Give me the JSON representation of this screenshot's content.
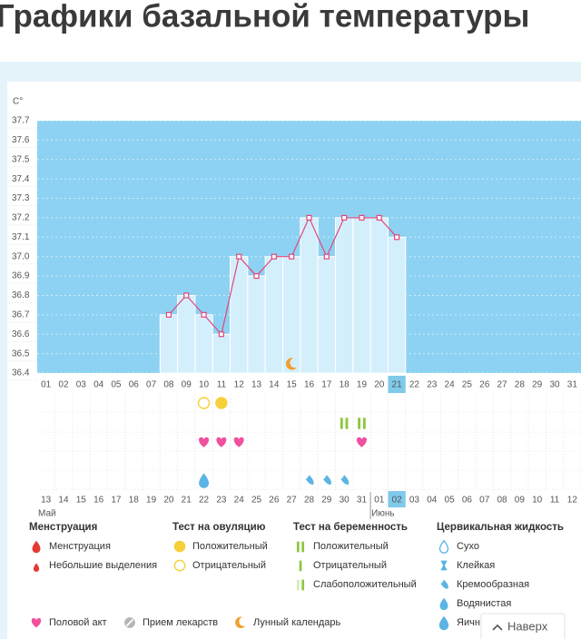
{
  "chart_data": {
    "type": "line",
    "title": "Графики базальной температуры",
    "y_label": "C°",
    "categories": [
      "01",
      "02",
      "03",
      "04",
      "05",
      "06",
      "07",
      "08",
      "09",
      "10",
      "11",
      "12",
      "13",
      "14",
      "15",
      "16",
      "17",
      "18",
      "19",
      "20",
      "21",
      "22",
      "23",
      "24",
      "25",
      "26",
      "27",
      "28",
      "29",
      "30",
      "31"
    ],
    "values": [
      null,
      null,
      null,
      null,
      null,
      null,
      null,
      36.7,
      36.8,
      36.7,
      36.6,
      37.0,
      36.9,
      37.0,
      37.0,
      37.2,
      37.0,
      37.2,
      37.2,
      37.2,
      37.1,
      null,
      null,
      null,
      null,
      null,
      null,
      null,
      null,
      null,
      null
    ],
    "dates": [
      "13",
      "14",
      "15",
      "16",
      "17",
      "18",
      "19",
      "20",
      "21",
      "22",
      "23",
      "24",
      "25",
      "26",
      "27",
      "28",
      "29",
      "30",
      "31",
      "01",
      "02",
      "03",
      "04",
      "05",
      "06",
      "07",
      "08",
      "09",
      "10",
      "11",
      "12"
    ],
    "red_dates": [
      "16",
      "17",
      "23",
      "24",
      "30",
      "31",
      "06",
      "07"
    ],
    "highlight_day": "21",
    "highlight_date": "02",
    "months": [
      {
        "label": "Май",
        "at": "13"
      },
      {
        "label": "Июнь",
        "at": "01"
      }
    ],
    "ylim": [
      36.4,
      37.7
    ],
    "yticks": [
      36.4,
      36.5,
      36.6,
      36.7,
      36.8,
      36.9,
      {
        "value": 37,
        "label": "37.0"
      },
      37.1,
      37.2,
      37.3,
      37.4,
      37.5,
      37.6,
      37.7
    ],
    "plot_color": "#8dd2f2",
    "bar_color": "#d4effc",
    "color": "#e2477c",
    "legend": [
      {
        "title": "Менструация",
        "items": [
          {
            "label": "Менструация",
            "icon": "drop",
            "color": "#e53935",
            "days": []
          },
          {
            "label": "Небольшие выделения",
            "icon": "drop-small",
            "color": "#e53935",
            "days": []
          }
        ]
      },
      {
        "title": "Тест на овуляцию",
        "items": [
          {
            "label": "Положительный",
            "icon": "circle",
            "color": "#f7cf3a",
            "days": [
              "11"
            ]
          },
          {
            "label": "Отрицательный",
            "icon": "ring",
            "color": "#f7cf3a",
            "days": [
              "10"
            ]
          }
        ]
      },
      {
        "title": "Тест на беременность",
        "items": [
          {
            "label": "Положительный",
            "icon": "bar2",
            "color": "#8cc63f",
            "days": [
              "18",
              "19"
            ]
          },
          {
            "label": "Отрицательный",
            "icon": "bar1",
            "color": "#8cc63f",
            "days": []
          },
          {
            "label": "Слабоположительный",
            "icon": "bar-weak",
            "color": "#8cc63f",
            "days": []
          }
        ]
      },
      {
        "title": "Цервикальная жидкость",
        "items": [
          {
            "label": "Сухо",
            "icon": "drop-ring",
            "color": "#5bb4e5",
            "days": []
          },
          {
            "label": "Клейкая",
            "icon": "hourglass",
            "color": "#5bb4e5",
            "days": []
          },
          {
            "label": "Кремообразная",
            "icon": "drop-half",
            "color": "#5bb4e5",
            "days": [
              "16",
              "17",
              "18"
            ]
          },
          {
            "label": "Водянистая",
            "icon": "drop",
            "color": "#5bb4e5",
            "days": []
          },
          {
            "label": "Яичный белок",
            "icon": "drop-big",
            "color": "#5bb4e5",
            "days": [
              "10"
            ]
          }
        ]
      }
    ],
    "extras": [
      {
        "label": "Половой акт",
        "icon": "heart",
        "color": "#f0509e",
        "days": [
          "10",
          "11",
          "12",
          "19"
        ]
      },
      {
        "label": "Прием лекарств",
        "icon": "pill",
        "color": "#b5b5b5",
        "days": []
      },
      {
        "label": "Лунный календарь",
        "icon": "moon",
        "color": "#f0a030",
        "days": [
          "15"
        ]
      }
    ]
  },
  "ui": {
    "back_to_top": "Наверх"
  }
}
